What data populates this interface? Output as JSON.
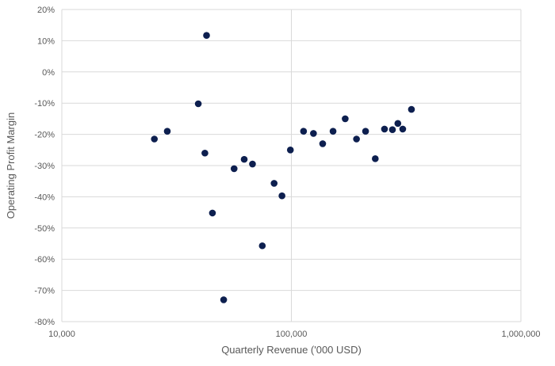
{
  "chart_data": {
    "type": "scatter",
    "title": "",
    "xlabel": "Quarterly Revenue ('000 USD)",
    "ylabel": "Operating Profit Margin",
    "x_scale": "log",
    "xlim": [
      10000,
      1000000
    ],
    "ylim": [
      -0.8,
      0.2
    ],
    "x_ticks": [
      {
        "value": 10000,
        "label": "10,000"
      },
      {
        "value": 100000,
        "label": "100,000"
      },
      {
        "value": 1000000,
        "label": "1,000,000"
      }
    ],
    "y_ticks": [
      {
        "value": 0.2,
        "label": "20%"
      },
      {
        "value": 0.1,
        "label": "10%"
      },
      {
        "value": 0.0,
        "label": "0%"
      },
      {
        "value": -0.1,
        "label": "-10%"
      },
      {
        "value": -0.2,
        "label": "-20%"
      },
      {
        "value": -0.3,
        "label": "-30%"
      },
      {
        "value": -0.4,
        "label": "-40%"
      },
      {
        "value": -0.5,
        "label": "-50%"
      },
      {
        "value": -0.6,
        "label": "-60%"
      },
      {
        "value": -0.7,
        "label": "-70%"
      },
      {
        "value": -0.8,
        "label": "-80%"
      }
    ],
    "grid": true,
    "marker_color": "#0d1f4f",
    "points": [
      {
        "x": 25300,
        "y": -0.215
      },
      {
        "x": 28800,
        "y": -0.19
      },
      {
        "x": 39300,
        "y": -0.102
      },
      {
        "x": 42000,
        "y": -0.26
      },
      {
        "x": 42700,
        "y": 0.117
      },
      {
        "x": 45300,
        "y": -0.452
      },
      {
        "x": 50700,
        "y": -0.73
      },
      {
        "x": 56300,
        "y": -0.31
      },
      {
        "x": 62300,
        "y": -0.28
      },
      {
        "x": 67700,
        "y": -0.295
      },
      {
        "x": 74700,
        "y": -0.557
      },
      {
        "x": 84100,
        "y": -0.357
      },
      {
        "x": 91000,
        "y": -0.397
      },
      {
        "x": 99000,
        "y": -0.25
      },
      {
        "x": 113000,
        "y": -0.19
      },
      {
        "x": 124800,
        "y": -0.197
      },
      {
        "x": 136900,
        "y": -0.23
      },
      {
        "x": 151900,
        "y": -0.19
      },
      {
        "x": 171600,
        "y": -0.15
      },
      {
        "x": 192200,
        "y": -0.215
      },
      {
        "x": 210500,
        "y": -0.19
      },
      {
        "x": 232000,
        "y": -0.278
      },
      {
        "x": 254500,
        "y": -0.183
      },
      {
        "x": 275600,
        "y": -0.185
      },
      {
        "x": 291000,
        "y": -0.165
      },
      {
        "x": 305600,
        "y": -0.183
      },
      {
        "x": 333500,
        "y": -0.12
      }
    ]
  }
}
